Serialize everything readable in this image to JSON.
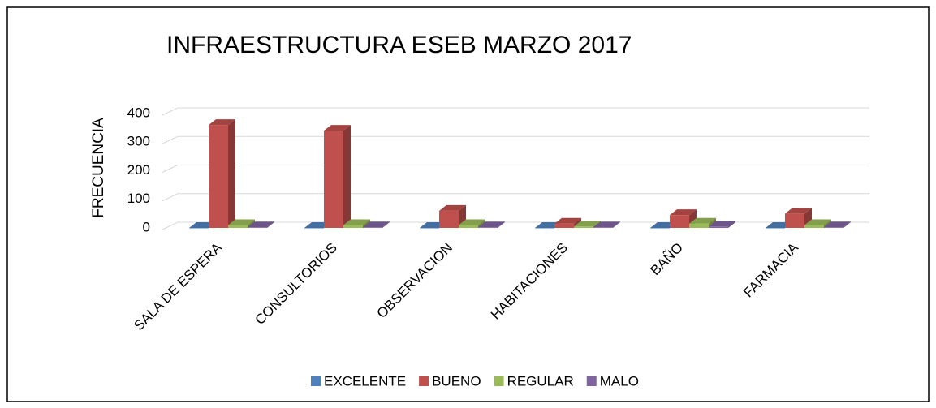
{
  "chart_data": {
    "type": "bar3d",
    "title": "INFRAESTRUCTURA ESEB MARZO 2017",
    "y_label": "FRECUENCIA",
    "categories": [
      "SALA DE ESPERA",
      "CONSULTORIOS",
      "OBSERVACION",
      "HABITACIONES",
      "BAÑO",
      "FARMACIA"
    ],
    "series": [
      {
        "name": "EXCELENTE",
        "color": "#4f81bd",
        "values": [
          0,
          0,
          0,
          0,
          0,
          0
        ]
      },
      {
        "name": "BUENO",
        "color": "#c0504d",
        "values": [
          360,
          340,
          60,
          15,
          45,
          50
        ]
      },
      {
        "name": "REGULAR",
        "color": "#9bbb59",
        "values": [
          10,
          10,
          10,
          5,
          15,
          10
        ]
      },
      {
        "name": "MALO",
        "color": "#8064a2",
        "values": [
          2,
          2,
          2,
          2,
          5,
          2
        ]
      }
    ],
    "ylim": [
      0,
      400
    ],
    "yticks": [
      0,
      100,
      200,
      300,
      400
    ],
    "grid": true,
    "legend": "bottom"
  }
}
